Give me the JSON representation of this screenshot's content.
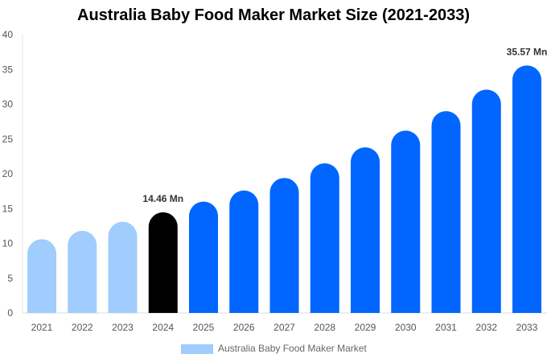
{
  "chart_data": {
    "type": "bar",
    "title": "Australia Baby Food Maker Market Size (2021-2033)",
    "xlabel": "",
    "ylabel": "",
    "ylim": [
      0,
      40
    ],
    "yticks": [
      0,
      5,
      10,
      15,
      20,
      25,
      30,
      35,
      40
    ],
    "grid": false,
    "legend_placement": "bottom",
    "categories": [
      "2021",
      "2022",
      "2023",
      "2024",
      "2025",
      "2026",
      "2027",
      "2028",
      "2029",
      "2030",
      "2031",
      "2032",
      "2033"
    ],
    "series": [
      {
        "name": "Australia Baby Food Maker Market",
        "values": [
          10.6,
          11.8,
          13.1,
          14.46,
          16.0,
          17.6,
          19.4,
          21.5,
          23.8,
          26.2,
          29.0,
          32.1,
          35.57
        ]
      }
    ],
    "bar_colors": [
      "#a0cdfd",
      "#a0cdfd",
      "#a0cdfd",
      "#000000",
      "#0066ff",
      "#0066ff",
      "#0066ff",
      "#0066ff",
      "#0066ff",
      "#0066ff",
      "#0066ff",
      "#0066ff",
      "#0066ff"
    ],
    "legend_color": "#a0cdfd",
    "annotations": [
      {
        "category": "2024",
        "text": "14.46 Mn"
      },
      {
        "category": "2033",
        "text": "35.57 Mn"
      }
    ]
  }
}
